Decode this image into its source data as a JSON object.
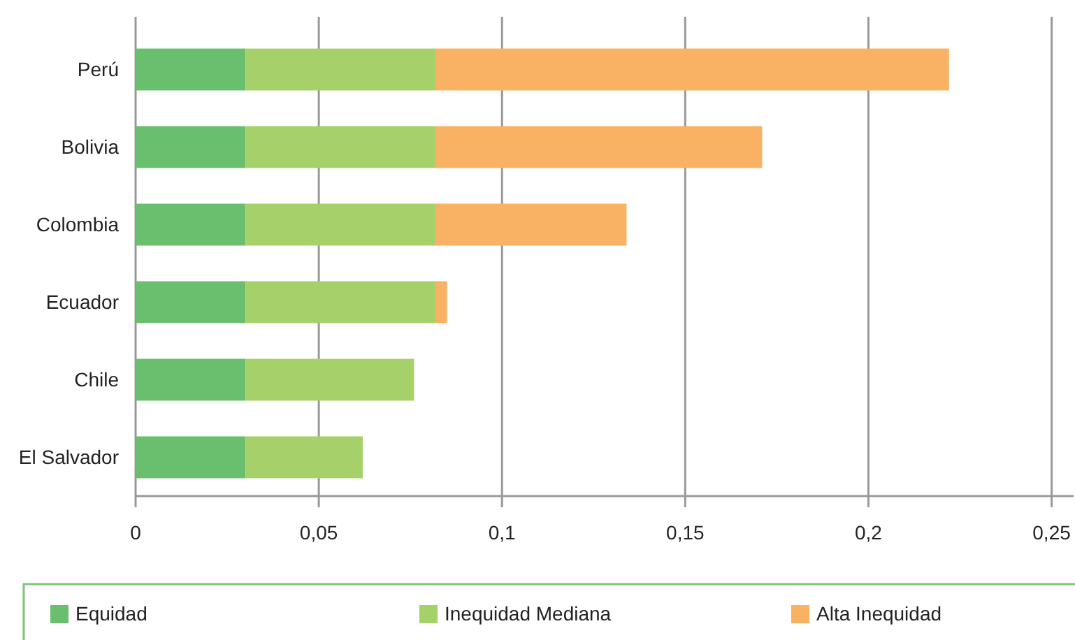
{
  "chart_data": {
    "type": "bar",
    "orientation": "horizontal",
    "stacked": true,
    "categories": [
      "Perú",
      "Bolivia",
      "Colombia",
      "Ecuador",
      "Chile",
      "El Salvador"
    ],
    "series": [
      {
        "name": "Equidad",
        "color": "#6abf6e",
        "values": [
          0.03,
          0.03,
          0.03,
          0.03,
          0.03,
          0.03
        ]
      },
      {
        "name": "Inequidad Mediana",
        "color": "#a6d16a",
        "values": [
          0.052,
          0.052,
          0.052,
          0.052,
          0.046,
          0.032
        ]
      },
      {
        "name": "Alta Inequidad",
        "color": "#f9b163",
        "values": [
          0.14,
          0.089,
          0.052,
          0.003,
          null,
          null
        ]
      }
    ],
    "xlim": [
      0,
      0.256
    ],
    "xticks": [
      0,
      {
        "value": 0.05,
        "label": "0,05"
      },
      {
        "value": 0.1,
        "label": "0,1"
      },
      {
        "value": 0.15,
        "label": "0,15"
      },
      {
        "value": 0.2,
        "label": "0,2"
      },
      {
        "value": 0.25,
        "label": "0,25"
      }
    ],
    "grid": "x",
    "legend": "bottom"
  }
}
